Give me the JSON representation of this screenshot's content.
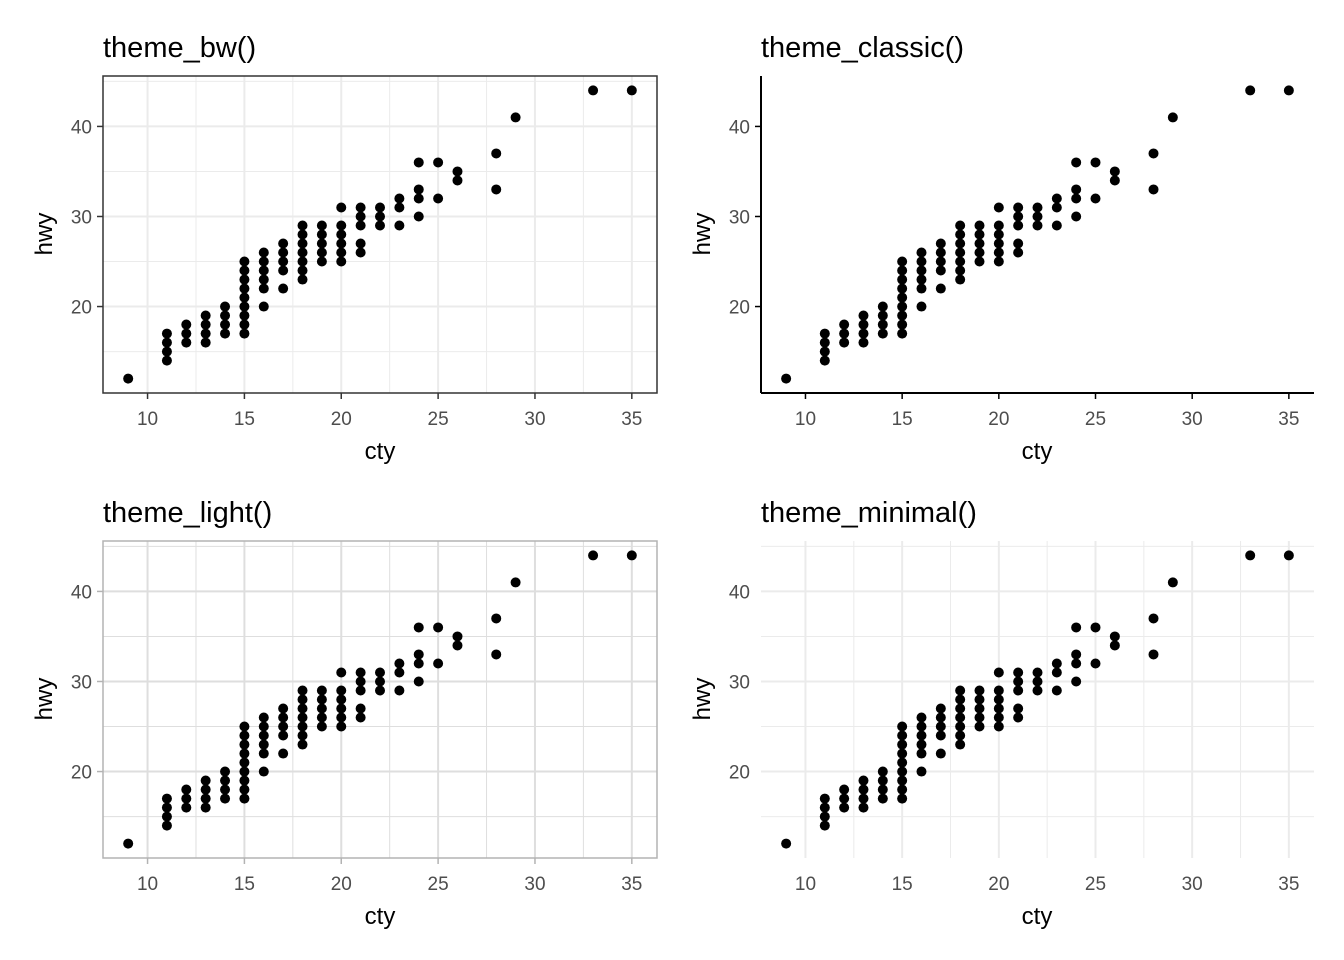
{
  "chart_data": [
    {
      "type": "scatter",
      "title": "theme_bw()",
      "theme": "bw",
      "xlabel": "cty",
      "ylabel": "hwy",
      "xlim": [
        7.7,
        36.3
      ],
      "ylim": [
        10.4,
        45.6
      ],
      "x_ticks": [
        10,
        15,
        20,
        25,
        30,
        35
      ],
      "y_ticks": [
        20,
        30,
        40
      ],
      "grid": true,
      "border": "#333333",
      "grid_color": "#ebebeb"
    },
    {
      "type": "scatter",
      "title": "theme_classic()",
      "theme": "classic",
      "xlabel": "cty",
      "ylabel": "hwy",
      "xlim": [
        7.7,
        36.3
      ],
      "ylim": [
        10.4,
        45.6
      ],
      "x_ticks": [
        10,
        15,
        20,
        25,
        30,
        35
      ],
      "y_ticks": [
        20,
        30,
        40
      ],
      "grid": false,
      "axis_line_color": "#000000"
    },
    {
      "type": "scatter",
      "title": "theme_light()",
      "theme": "light",
      "xlabel": "cty",
      "ylabel": "hwy",
      "xlim": [
        7.7,
        36.3
      ],
      "ylim": [
        10.4,
        45.6
      ],
      "x_ticks": [
        10,
        15,
        20,
        25,
        30,
        35
      ],
      "y_ticks": [
        20,
        30,
        40
      ],
      "grid": true,
      "border": "#b3b3b3",
      "grid_color": "#dedede"
    },
    {
      "type": "scatter",
      "title": "theme_minimal()",
      "theme": "minimal",
      "xlabel": "cty",
      "ylabel": "hwy",
      "xlim": [
        7.7,
        36.3
      ],
      "ylim": [
        10.4,
        45.6
      ],
      "x_ticks": [
        10,
        15,
        20,
        25,
        30,
        35
      ],
      "y_ticks": [
        20,
        30,
        40
      ],
      "grid": true,
      "grid_color": "#ebebeb"
    }
  ],
  "points": [
    [
      9,
      12
    ],
    [
      11,
      14
    ],
    [
      11,
      15
    ],
    [
      11,
      16
    ],
    [
      11,
      17
    ],
    [
      12,
      16
    ],
    [
      12,
      17
    ],
    [
      12,
      18
    ],
    [
      13,
      16
    ],
    [
      13,
      17
    ],
    [
      13,
      18
    ],
    [
      13,
      19
    ],
    [
      14,
      17
    ],
    [
      14,
      18
    ],
    [
      14,
      19
    ],
    [
      14,
      20
    ],
    [
      15,
      17
    ],
    [
      15,
      18
    ],
    [
      15,
      19
    ],
    [
      15,
      20
    ],
    [
      15,
      21
    ],
    [
      15,
      22
    ],
    [
      15,
      23
    ],
    [
      15,
      24
    ],
    [
      15,
      25
    ],
    [
      16,
      20
    ],
    [
      16,
      22
    ],
    [
      16,
      23
    ],
    [
      16,
      24
    ],
    [
      16,
      25
    ],
    [
      16,
      26
    ],
    [
      17,
      22
    ],
    [
      17,
      24
    ],
    [
      17,
      25
    ],
    [
      17,
      26
    ],
    [
      17,
      27
    ],
    [
      18,
      23
    ],
    [
      18,
      24
    ],
    [
      18,
      25
    ],
    [
      18,
      26
    ],
    [
      18,
      27
    ],
    [
      18,
      28
    ],
    [
      18,
      29
    ],
    [
      19,
      25
    ],
    [
      19,
      26
    ],
    [
      19,
      27
    ],
    [
      19,
      28
    ],
    [
      19,
      29
    ],
    [
      20,
      25
    ],
    [
      20,
      26
    ],
    [
      20,
      27
    ],
    [
      20,
      28
    ],
    [
      20,
      29
    ],
    [
      20,
      31
    ],
    [
      21,
      26
    ],
    [
      21,
      27
    ],
    [
      21,
      29
    ],
    [
      21,
      30
    ],
    [
      21,
      31
    ],
    [
      22,
      29
    ],
    [
      22,
      30
    ],
    [
      22,
      31
    ],
    [
      23,
      29
    ],
    [
      23,
      31
    ],
    [
      23,
      32
    ],
    [
      24,
      30
    ],
    [
      24,
      32
    ],
    [
      24,
      33
    ],
    [
      24,
      36
    ],
    [
      25,
      32
    ],
    [
      25,
      36
    ],
    [
      26,
      34
    ],
    [
      26,
      35
    ],
    [
      28,
      33
    ],
    [
      28,
      37
    ],
    [
      29,
      41
    ],
    [
      33,
      44
    ],
    [
      35,
      44
    ]
  ]
}
